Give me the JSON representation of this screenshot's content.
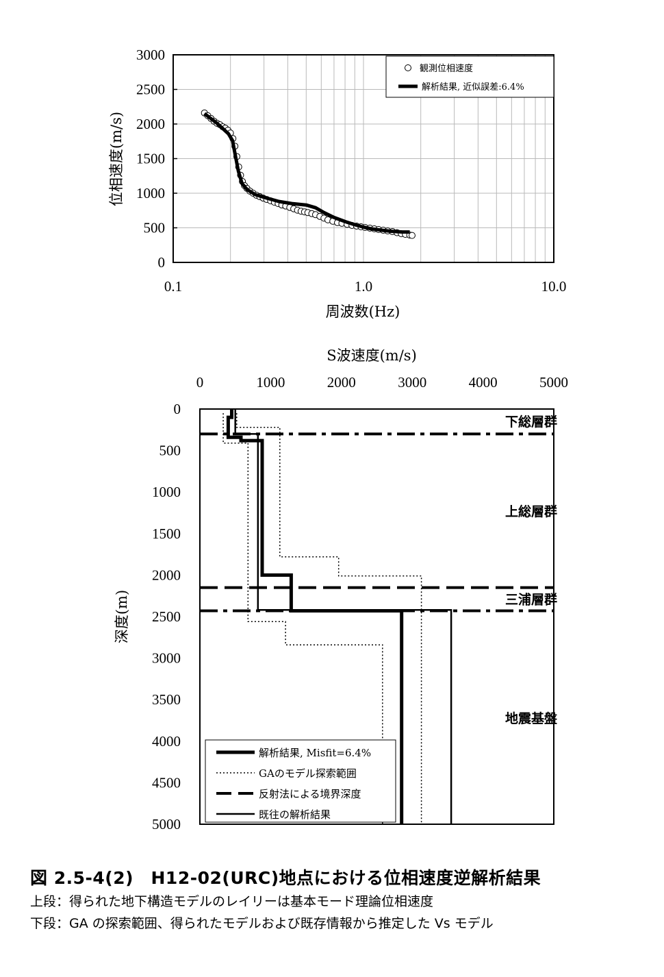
{
  "chart_data": [
    {
      "type": "scatter",
      "x_scale": "log",
      "xlim": [
        0.1,
        10.0
      ],
      "ylim": [
        0,
        3000
      ],
      "xlabel": "周波数(Hz)",
      "ylabel": "位相速度(m/s)",
      "x_ticks": [
        "0.1",
        "1.0",
        "10.0"
      ],
      "y_ticks": [
        "0",
        "500",
        "1000",
        "1500",
        "2000",
        "2500",
        "3000"
      ],
      "grid": true,
      "legend_position": "top-right",
      "series": [
        {
          "name": "観測位相速度",
          "marker": "open-circle",
          "points": [
            [
              0.146,
              2160
            ],
            [
              0.152,
              2120
            ],
            [
              0.158,
              2080
            ],
            [
              0.164,
              2040
            ],
            [
              0.17,
              2010
            ],
            [
              0.176,
              1990
            ],
            [
              0.182,
              1960
            ],
            [
              0.188,
              1940
            ],
            [
              0.194,
              1910
            ],
            [
              0.2,
              1870
            ],
            [
              0.206,
              1790
            ],
            [
              0.211,
              1680
            ],
            [
              0.216,
              1530
            ],
            [
              0.221,
              1380
            ],
            [
              0.226,
              1260
            ],
            [
              0.231,
              1170
            ],
            [
              0.237,
              1110
            ],
            [
              0.244,
              1070
            ],
            [
              0.253,
              1030
            ],
            [
              0.263,
              1000
            ],
            [
              0.274,
              970
            ],
            [
              0.285,
              950
            ],
            [
              0.297,
              930
            ],
            [
              0.31,
              910
            ],
            [
              0.325,
              890
            ],
            [
              0.34,
              870
            ],
            [
              0.356,
              850
            ],
            [
              0.372,
              830
            ],
            [
              0.39,
              815
            ],
            [
              0.41,
              795
            ],
            [
              0.43,
              775
            ],
            [
              0.45,
              755
            ],
            [
              0.47,
              740
            ],
            [
              0.49,
              730
            ],
            [
              0.51,
              720
            ],
            [
              0.535,
              705
            ],
            [
              0.56,
              690
            ],
            [
              0.59,
              665
            ],
            [
              0.62,
              640
            ],
            [
              0.65,
              615
            ],
            [
              0.69,
              595
            ],
            [
              0.73,
              575
            ],
            [
              0.77,
              565
            ],
            [
              0.82,
              550
            ],
            [
              0.87,
              535
            ],
            [
              0.92,
              525
            ],
            [
              0.97,
              515
            ],
            [
              1.02,
              505
            ],
            [
              1.08,
              495
            ],
            [
              1.14,
              485
            ],
            [
              1.2,
              475
            ],
            [
              1.27,
              465
            ],
            [
              1.34,
              455
            ],
            [
              1.42,
              445
            ],
            [
              1.5,
              430
            ],
            [
              1.58,
              415
            ],
            [
              1.66,
              405
            ],
            [
              1.75,
              395
            ],
            [
              1.8,
              390
            ]
          ]
        },
        {
          "name": "解析結果, 近似誤差:6.4%",
          "style": "thick-solid",
          "points": [
            [
              0.146,
              2150
            ],
            [
              0.17,
              2010
            ],
            [
              0.195,
              1860
            ],
            [
              0.205,
              1760
            ],
            [
              0.212,
              1550
            ],
            [
              0.22,
              1320
            ],
            [
              0.23,
              1140
            ],
            [
              0.245,
              1050
            ],
            [
              0.27,
              980
            ],
            [
              0.31,
              930
            ],
            [
              0.36,
              880
            ],
            [
              0.42,
              850
            ],
            [
              0.5,
              830
            ],
            [
              0.56,
              790
            ],
            [
              0.62,
              720
            ],
            [
              0.7,
              650
            ],
            [
              0.8,
              590
            ],
            [
              0.9,
              545
            ],
            [
              1.0,
              510
            ],
            [
              1.1,
              485
            ],
            [
              1.25,
              465
            ],
            [
              1.4,
              450
            ],
            [
              1.6,
              440
            ],
            [
              1.75,
              440
            ]
          ]
        }
      ]
    },
    {
      "type": "line",
      "title": "S波速度(m/s)",
      "xlim": [
        0,
        5000
      ],
      "ylim": [
        0,
        5000
      ],
      "y_inverted": true,
      "ylabel": "深度(m)",
      "x_ticks": [
        "0",
        "1000",
        "2000",
        "3000",
        "4000",
        "5000"
      ],
      "y_ticks": [
        "0",
        "500",
        "1000",
        "1500",
        "2000",
        "2500",
        "3000",
        "3500",
        "4000",
        "4500",
        "5000"
      ],
      "legend_position": "bottom-left",
      "series": [
        {
          "name": "解析結果, Misfit=6.4%",
          "style": "thick-solid",
          "points": [
            [
              450,
              0
            ],
            [
              450,
              100
            ],
            [
              400,
              100
            ],
            [
              400,
              340
            ],
            [
              580,
              340
            ],
            [
              580,
              380
            ],
            [
              880,
              380
            ],
            [
              880,
              2000
            ],
            [
              1290,
              2000
            ],
            [
              1290,
              2430
            ],
            [
              2850,
              2430
            ],
            [
              2850,
              5000
            ]
          ]
        },
        {
          "name": "GAのモデル探索範囲",
          "style": "dotted",
          "min_points": [
            [
              330,
              50
            ],
            [
              330,
              410
            ],
            [
              680,
              410
            ],
            [
              680,
              2560
            ],
            [
              1210,
              2560
            ],
            [
              1210,
              2840
            ],
            [
              2580,
              2840
            ],
            [
              2580,
              5000
            ]
          ],
          "max_points": [
            [
              520,
              50
            ],
            [
              520,
              220
            ],
            [
              1130,
              220
            ],
            [
              1130,
              1780
            ],
            [
              1960,
              1780
            ],
            [
              1960,
              2010
            ],
            [
              3130,
              2010
            ],
            [
              3130,
              5000
            ]
          ]
        },
        {
          "name": "反射法による境界深度",
          "style": "dash-dot",
          "depths": [
            300,
            2150,
            2430
          ]
        },
        {
          "name": "既往の解析結果",
          "style": "thin-solid",
          "points": [
            [
              500,
              0
            ],
            [
              500,
              300
            ],
            [
              820,
              300
            ],
            [
              820,
              2420
            ],
            [
              3550,
              2420
            ],
            [
              3550,
              5000
            ]
          ]
        }
      ],
      "groups": [
        {
          "label": "下総層群",
          "depth": 150
        },
        {
          "label": "上総層群",
          "depth": 1230
        },
        {
          "label": "三浦層群",
          "depth": 2290
        },
        {
          "label": "地震基盤",
          "depth": 3720
        }
      ]
    }
  ],
  "caption": {
    "title": "図 2.5-4(2)　H12-02(URC)地点における位相速度逆解析結果",
    "line1": "上段：得られた地下構造モデルのレイリーは基本モード理論位相速度",
    "line2": "下段：GA の探索範囲、得られたモデルおよび既存情報から推定した Vs モデル"
  }
}
